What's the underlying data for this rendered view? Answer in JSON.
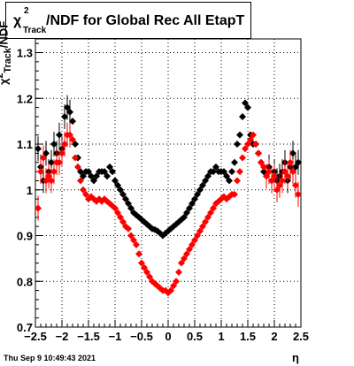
{
  "title": {
    "chi_symbol": "χ",
    "superscript": "2",
    "subscript": "Track",
    "main": "/NDF for Global Rec All EtapT"
  },
  "yaxis_label": {
    "chi_symbol": "χ",
    "superscript": "2",
    "subscript": "Track",
    "tail": "/NDF"
  },
  "xaxis_label": "η",
  "timestamp": "Thu Sep  9 10:49:43 2021",
  "colors": {
    "series_black": "#000000",
    "series_red": "#ff0000",
    "grid": "#000000"
  },
  "chart_data": {
    "type": "scatter",
    "title": "χ²_Track/NDF for Global Rec All EtapT",
    "xlabel": "η",
    "ylabel": "χ²_Track/NDF",
    "xlim": [
      -2.5,
      2.5
    ],
    "ylim": [
      0.7,
      1.33
    ],
    "grid": true,
    "x_ticks": [
      -2.5,
      -2,
      -1.5,
      -1,
      -0.5,
      0,
      0.5,
      1,
      1.5,
      2,
      2.5
    ],
    "x_tick_labels": [
      "−2.5",
      "−2",
      "−1.5",
      "−1",
      "−0.5",
      "0",
      "0.5",
      "1",
      "1.5",
      "2",
      "2.5"
    ],
    "y_ticks": [
      0.7,
      0.8,
      0.9,
      1.0,
      1.1,
      1.2,
      1.3
    ],
    "y_tick_labels": [
      "0.7",
      "0.8",
      "0.9",
      "1",
      "1.1",
      "1.2",
      "1.3"
    ],
    "series": [
      {
        "color": "#000000",
        "x": [
          -2.45,
          -2.4,
          -2.35,
          -2.3,
          -2.25,
          -2.2,
          -2.15,
          -2.1,
          -2.05,
          -2.0,
          -1.95,
          -1.9,
          -1.85,
          -1.8,
          -1.75,
          -1.7,
          -1.65,
          -1.6,
          -1.55,
          -1.5,
          -1.45,
          -1.4,
          -1.35,
          -1.3,
          -1.25,
          -1.2,
          -1.15,
          -1.1,
          -1.05,
          -1.0,
          -0.95,
          -0.9,
          -0.85,
          -0.8,
          -0.75,
          -0.7,
          -0.65,
          -0.6,
          -0.55,
          -0.5,
          -0.45,
          -0.4,
          -0.35,
          -0.3,
          -0.25,
          -0.2,
          -0.15,
          -0.1,
          -0.05,
          0.0,
          0.05,
          0.1,
          0.15,
          0.2,
          0.25,
          0.3,
          0.35,
          0.4,
          0.45,
          0.5,
          0.55,
          0.6,
          0.65,
          0.7,
          0.75,
          0.8,
          0.85,
          0.9,
          0.95,
          1.0,
          1.05,
          1.1,
          1.15,
          1.2,
          1.25,
          1.3,
          1.35,
          1.4,
          1.45,
          1.5,
          1.55,
          1.6,
          1.65,
          1.7,
          1.75,
          1.8,
          1.85,
          1.9,
          1.95,
          2.0,
          2.05,
          2.1,
          2.15,
          2.2,
          2.25,
          2.3,
          2.35,
          2.4,
          2.45
        ],
        "y": [
          1.09,
          1.05,
          1.02,
          1.08,
          1.04,
          1.06,
          1.1,
          1.08,
          1.12,
          1.09,
          1.16,
          1.18,
          1.17,
          1.15,
          1.1,
          1.07,
          1.04,
          1.03,
          1.04,
          1.04,
          1.03,
          1.02,
          1.03,
          1.04,
          1.04,
          1.04,
          1.03,
          1.05,
          1.04,
          1.02,
          1.01,
          1.0,
          0.99,
          0.98,
          0.97,
          0.96,
          0.95,
          0.945,
          0.94,
          0.935,
          0.93,
          0.925,
          0.92,
          0.915,
          0.913,
          0.91,
          0.905,
          0.9,
          0.905,
          0.91,
          0.915,
          0.92,
          0.925,
          0.93,
          0.935,
          0.94,
          0.95,
          0.96,
          0.97,
          0.98,
          0.99,
          1.0,
          1.01,
          1.02,
          1.03,
          1.04,
          1.04,
          1.05,
          1.04,
          1.04,
          1.04,
          1.03,
          1.02,
          1.04,
          1.06,
          1.1,
          1.12,
          1.16,
          1.19,
          1.18,
          1.12,
          1.1,
          1.1,
          1.08,
          1.06,
          1.04,
          1.03,
          1.05,
          1.02,
          1.04,
          1.02,
          1.03,
          1.04,
          1.06,
          1.02,
          1.05,
          1.08,
          1.05,
          1.06
        ]
      },
      {
        "color": "#ff0000",
        "x": [
          -2.45,
          -2.4,
          -2.35,
          -2.3,
          -2.25,
          -2.2,
          -2.15,
          -2.1,
          -2.05,
          -2.0,
          -1.95,
          -1.9,
          -1.85,
          -1.8,
          -1.75,
          -1.7,
          -1.65,
          -1.6,
          -1.55,
          -1.5,
          -1.45,
          -1.4,
          -1.35,
          -1.3,
          -1.25,
          -1.2,
          -1.15,
          -1.1,
          -1.05,
          -1.0,
          -0.95,
          -0.9,
          -0.85,
          -0.8,
          -0.75,
          -0.7,
          -0.65,
          -0.6,
          -0.55,
          -0.5,
          -0.45,
          -0.4,
          -0.35,
          -0.3,
          -0.25,
          -0.2,
          -0.15,
          -0.1,
          -0.05,
          0.0,
          0.05,
          0.1,
          0.15,
          0.2,
          0.25,
          0.3,
          0.35,
          0.4,
          0.45,
          0.5,
          0.55,
          0.6,
          0.65,
          0.7,
          0.75,
          0.8,
          0.85,
          0.9,
          0.95,
          1.0,
          1.05,
          1.1,
          1.15,
          1.2,
          1.25,
          1.3,
          1.35,
          1.4,
          1.45,
          1.5,
          1.55,
          1.6,
          1.65,
          1.7,
          1.75,
          1.8,
          1.85,
          1.9,
          1.95,
          2.0,
          2.05,
          2.1,
          2.15,
          2.2,
          2.25,
          2.3,
          2.35,
          2.4,
          2.45
        ],
        "y": [
          0.96,
          1.04,
          1.07,
          1.02,
          1.03,
          1.02,
          1.04,
          1.06,
          1.06,
          1.08,
          1.1,
          1.12,
          1.12,
          1.11,
          1.07,
          1.05,
          1.02,
          1.0,
          0.99,
          0.98,
          0.985,
          0.98,
          0.975,
          0.98,
          0.975,
          0.98,
          0.975,
          0.97,
          0.965,
          0.96,
          0.95,
          0.94,
          0.93,
          0.92,
          0.915,
          0.9,
          0.89,
          0.88,
          0.86,
          0.84,
          0.83,
          0.82,
          0.81,
          0.8,
          0.795,
          0.79,
          0.785,
          0.78,
          0.78,
          0.775,
          0.78,
          0.79,
          0.8,
          0.82,
          0.84,
          0.85,
          0.86,
          0.87,
          0.88,
          0.89,
          0.9,
          0.91,
          0.92,
          0.93,
          0.94,
          0.95,
          0.96,
          0.97,
          0.975,
          0.98,
          0.985,
          0.98,
          0.985,
          0.99,
          0.99,
          1.02,
          1.04,
          1.07,
          1.09,
          1.1,
          1.11,
          1.12,
          1.1,
          1.08,
          1.06,
          1.05,
          1.03,
          1.04,
          1.02,
          1.03,
          1.0,
          1.01,
          1.02,
          1.04,
          1.03,
          1.06,
          1.04,
          1.01,
          0.99
        ]
      }
    ]
  }
}
